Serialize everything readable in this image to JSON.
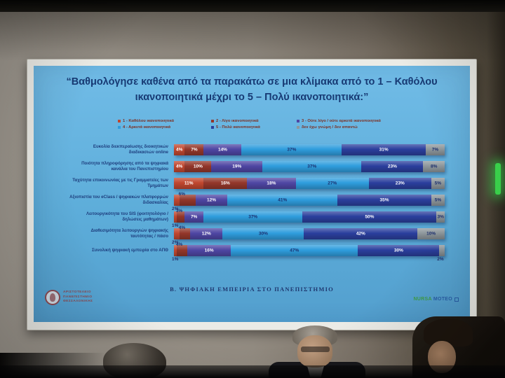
{
  "slide": {
    "title": "“Βαθμολόγησε καθένα από τα παρακάτω σε μια κλίμακα από το 1 – Καθόλου ικανοποιητικά μέχρι το 5 – Πολύ ικανοποιητικά:”",
    "caption": "Β. ΨΗΦΙΑΚΗ ΕΜΠΕΙΡΙΑ ΣΤΟ ΠΑΝΕΠΙΣΤΗΜΙΟ",
    "background_color": "#5fb0dd",
    "title_color": "#173a74",
    "university_logo": {
      "line1": "ΑΡΙΣΤΟΤΕΛΕΙΟ",
      "line2": "ΠΑΝΕΠΙΣΤΗΜΙΟ",
      "line3": "ΘΕΣΣΑΛΟΝΙΚΗΣ"
    },
    "agency_logo": {
      "part1": "NURSA",
      "part2": "MOTEO"
    }
  },
  "chart_data": {
    "type": "bar",
    "orientation": "horizontal-stacked",
    "unit": "%",
    "value_labels": true,
    "legend_position": "top",
    "categories": [
      "Ευκολία διεκπεραίωσης διοικητικών διαδικασιών online",
      "Ποιότητα πληροφόρησης από τα ψηφιακά κανάλια του Πανεπιστημίου",
      "Ταχύτητα επικοινωνίας με τις Γραμματείες των Τμημάτων",
      "Αξιοπιστία του eClass / ψηφιακών πλατφορμών διδασκαλίας",
      "Λειτουργικότητα του SIS (φοιτητολόγιο / δηλώσεις μαθημάτων)",
      "Διαθεσιμότητα λειτουργιών ψηφιακής ταυτότητας / πάσο",
      "Συνολική ψηφιακή εμπειρία στο ΑΠΘ"
    ],
    "series": [
      {
        "name": "1 - Καθόλου ικανοποιητικά",
        "color": "#c0472f",
        "values": [
          4,
          4,
          11,
          2,
          1,
          2,
          1
        ]
      },
      {
        "name": "2 - Λίγο ικανοποιητικά",
        "color": "#93372a",
        "values": [
          7,
          10,
          16,
          6,
          3,
          4,
          4
        ]
      },
      {
        "name": "3 - Ούτε λίγο / ούτε αρκετά ικανοποιητικά",
        "color": "#4f46a3",
        "values": [
          14,
          19,
          18,
          12,
          7,
          12,
          16
        ]
      },
      {
        "name": "4 - Αρκετά ικανοποιητικά",
        "color": "#2f9ddd",
        "values": [
          37,
          37,
          27,
          41,
          37,
          30,
          47
        ]
      },
      {
        "name": "5 - Πολύ ικανοποιητικά",
        "color": "#2b3f9d",
        "values": [
          31,
          23,
          23,
          35,
          50,
          42,
          30
        ]
      },
      {
        "name": "δεν έχω γνώμη / δεν απαντώ",
        "color": "#8e979c",
        "values": [
          7,
          8,
          5,
          5,
          3,
          10,
          2
        ]
      }
    ]
  }
}
